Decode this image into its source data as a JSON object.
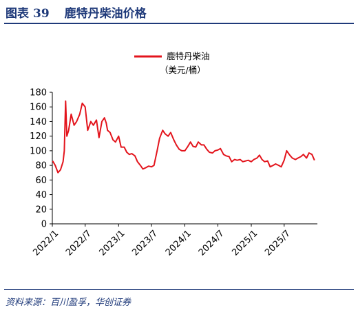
{
  "header": {
    "figure_label": "图表",
    "figure_number": "39",
    "title": "鹿特丹柴油价格"
  },
  "source": "资料来源：百川盈孚，华创证券",
  "colors": {
    "series": "#e3141c",
    "accent": "#1f3a7a"
  },
  "chart_data": {
    "type": "line",
    "legend": {
      "name": "鹿特丹柴油",
      "unit": "（美元/桶）",
      "placement": "top-center"
    },
    "ylim": [
      0,
      180
    ],
    "yticks": [
      "0",
      "20",
      "40",
      "60",
      "80",
      "100",
      "120",
      "140",
      "160",
      "180"
    ],
    "xlim": [
      "2022-01-01",
      "2025-12-31"
    ],
    "xticks": [
      "2022/1",
      "2022/7",
      "2023/1",
      "2023/7",
      "2024/1",
      "2024/7",
      "2025/1",
      "2025/7"
    ],
    "grid": false,
    "series": [
      {
        "name": "鹿特丹柴油",
        "x": [
          "2022-01-03",
          "2022-01-17",
          "2022-02-01",
          "2022-02-15",
          "2022-03-01",
          "2022-03-08",
          "2022-03-15",
          "2022-03-22",
          "2022-04-01",
          "2022-04-15",
          "2022-05-01",
          "2022-05-15",
          "2022-06-01",
          "2022-06-15",
          "2022-07-01",
          "2022-07-15",
          "2022-08-01",
          "2022-08-15",
          "2022-09-01",
          "2022-09-15",
          "2022-10-01",
          "2022-10-15",
          "2022-10-25",
          "2022-11-01",
          "2022-11-15",
          "2022-12-01",
          "2022-12-15",
          "2023-01-01",
          "2023-01-15",
          "2023-02-01",
          "2023-02-15",
          "2023-03-01",
          "2023-03-15",
          "2023-04-01",
          "2023-04-15",
          "2023-05-01",
          "2023-05-15",
          "2023-06-01",
          "2023-06-15",
          "2023-07-01",
          "2023-07-15",
          "2023-08-01",
          "2023-08-15",
          "2023-09-01",
          "2023-09-15",
          "2023-10-01",
          "2023-10-15",
          "2023-11-01",
          "2023-11-15",
          "2023-12-01",
          "2023-12-15",
          "2024-01-01",
          "2024-01-15",
          "2024-02-01",
          "2024-02-15",
          "2024-03-01",
          "2024-03-15",
          "2024-04-01",
          "2024-04-15",
          "2024-05-01",
          "2024-05-15",
          "2024-06-01",
          "2024-06-15",
          "2024-07-01",
          "2024-07-15",
          "2024-08-01",
          "2024-08-15",
          "2024-09-01",
          "2024-09-15",
          "2024-10-01",
          "2024-10-15",
          "2024-11-01",
          "2024-11-15",
          "2024-12-01",
          "2024-12-15",
          "2025-01-01",
          "2025-01-15",
          "2025-02-01",
          "2025-02-15",
          "2025-03-01",
          "2025-03-15",
          "2025-04-01",
          "2025-04-15",
          "2025-05-01",
          "2025-05-15",
          "2025-06-01",
          "2025-06-15",
          "2025-07-01",
          "2025-07-15",
          "2025-08-01",
          "2025-08-15",
          "2025-09-01",
          "2025-09-15",
          "2025-10-01",
          "2025-10-15",
          "2025-11-01",
          "2025-11-15",
          "2025-12-01",
          "2025-12-15"
        ],
        "values": [
          86,
          80,
          70,
          74,
          85,
          100,
          168,
          120,
          128,
          150,
          135,
          140,
          150,
          165,
          160,
          128,
          140,
          135,
          142,
          118,
          140,
          145,
          138,
          128,
          125,
          115,
          112,
          120,
          105,
          105,
          98,
          95,
          96,
          93,
          85,
          80,
          75,
          77,
          79,
          78,
          80,
          100,
          117,
          128,
          123,
          120,
          125,
          115,
          108,
          102,
          100,
          100,
          105,
          112,
          106,
          105,
          112,
          108,
          108,
          102,
          98,
          97,
          100,
          101,
          103,
          95,
          93,
          92,
          85,
          88,
          87,
          88,
          85,
          86,
          87,
          85,
          88,
          90,
          94,
          88,
          85,
          86,
          78,
          80,
          82,
          80,
          78,
          87,
          100,
          94,
          90,
          88,
          90,
          92,
          95,
          90,
          97,
          95,
          87
        ]
      }
    ]
  }
}
